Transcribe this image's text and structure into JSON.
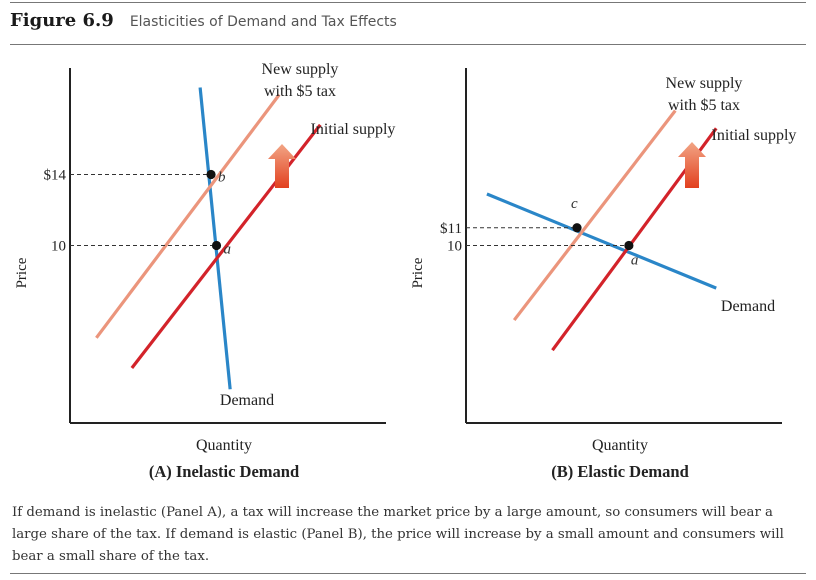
{
  "figure": {
    "number": "Figure 6.9",
    "title": "Elasticities of Demand and Tax Effects",
    "caption": "If demand is inelastic (Panel A), a tax will increase the market price by a large amount, so consumers will bear a large share of the tax. If demand is elastic (Panel B), the price will increase by a small amount and consumers will bear a small share of the tax."
  },
  "colors": {
    "demand": "#2a86c8",
    "initial_supply": "#d3232a",
    "new_supply": "#eb957c",
    "arrow_top": "#f2a585",
    "arrow_bottom": "#e2401f",
    "axis": "#222222",
    "guide": "#333333"
  },
  "chart_data": [
    {
      "type": "line",
      "panel_label": "(A) Inelastic Demand",
      "xlabel": "Quantity",
      "ylabel": "Price",
      "xlim": [
        0,
        10
      ],
      "ylim": [
        0,
        20
      ],
      "grid": false,
      "y_ticks": [
        {
          "value": 14,
          "label": "$14"
        },
        {
          "value": 10,
          "label": "10"
        }
      ],
      "series": [
        {
          "key": "demand",
          "name": "Demand",
          "color": "#2a86c8",
          "points": [
            [
              4.4,
              18.9
            ],
            [
              5.5,
              1.9
            ]
          ]
        },
        {
          "key": "initial",
          "name": "Initial supply",
          "color": "#d3232a",
          "points": [
            [
              1.9,
              3.1
            ],
            [
              8.8,
              16.8
            ]
          ]
        },
        {
          "key": "new",
          "name": "New supply with $5 tax",
          "color": "#eb957c",
          "points": [
            [
              0.6,
              4.8
            ],
            [
              7.3,
              18.5
            ]
          ]
        }
      ],
      "equilibria": [
        {
          "label": "b",
          "x": 4.8,
          "y": 14
        },
        {
          "label": "a",
          "x": 5.0,
          "y": 10
        }
      ]
    },
    {
      "type": "line",
      "panel_label": "(B) Elastic Demand",
      "xlabel": "Quantity",
      "ylabel": "Price",
      "xlim": [
        0,
        10
      ],
      "ylim": [
        0,
        20
      ],
      "grid": false,
      "y_ticks": [
        {
          "value": 11,
          "label": "$11"
        },
        {
          "value": 10,
          "label": "10"
        }
      ],
      "series": [
        {
          "key": "demand",
          "name": "Demand",
          "color": "#2a86c8",
          "points": [
            [
              0.4,
              12.9
            ],
            [
              8.8,
              7.6
            ]
          ]
        },
        {
          "key": "initial",
          "name": "Initial supply",
          "color": "#d3232a",
          "points": [
            [
              2.8,
              4.1
            ],
            [
              8.8,
              16.6
            ]
          ]
        },
        {
          "key": "new",
          "name": "New supply with $5 tax",
          "color": "#eb957c",
          "points": [
            [
              1.4,
              5.8
            ],
            [
              7.3,
              17.6
            ]
          ]
        }
      ],
      "equilibria": [
        {
          "label": "c",
          "x": 3.7,
          "y": 11
        },
        {
          "label": "a",
          "x": 5.6,
          "y": 10
        }
      ]
    }
  ]
}
